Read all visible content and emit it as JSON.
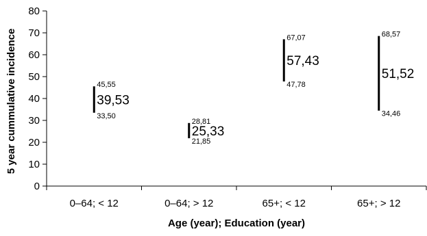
{
  "chart_data": {
    "type": "errorbar",
    "title": "",
    "xlabel": "Age (year); Education (year)",
    "ylabel": "5 year cummulative incidence",
    "ylim": [
      0,
      80
    ],
    "yticks": [
      "0",
      "10",
      "20",
      "30",
      "40",
      "50",
      "60",
      "70",
      "80"
    ],
    "categories": [
      "0–64; < 12",
      "0–64; > 12",
      "65+; < 12",
      "65+; > 12"
    ],
    "points": [
      {
        "mean": 39.53,
        "low": 33.5,
        "high": 45.55,
        "mean_label": "39,53",
        "low_label": "33,50",
        "high_label": "45,55"
      },
      {
        "mean": 25.33,
        "low": 21.85,
        "high": 28.81,
        "mean_label": "25,33",
        "low_label": "21,85",
        "high_label": "28,81"
      },
      {
        "mean": 57.43,
        "low": 47.78,
        "high": 67.07,
        "mean_label": "57,43",
        "low_label": "47,78",
        "high_label": "67,07"
      },
      {
        "mean": 51.52,
        "low": 34.46,
        "high": 68.57,
        "mean_label": "51,52",
        "low_label": "34,46",
        "high_label": "68,57"
      }
    ],
    "grid": false,
    "legend": "none"
  }
}
